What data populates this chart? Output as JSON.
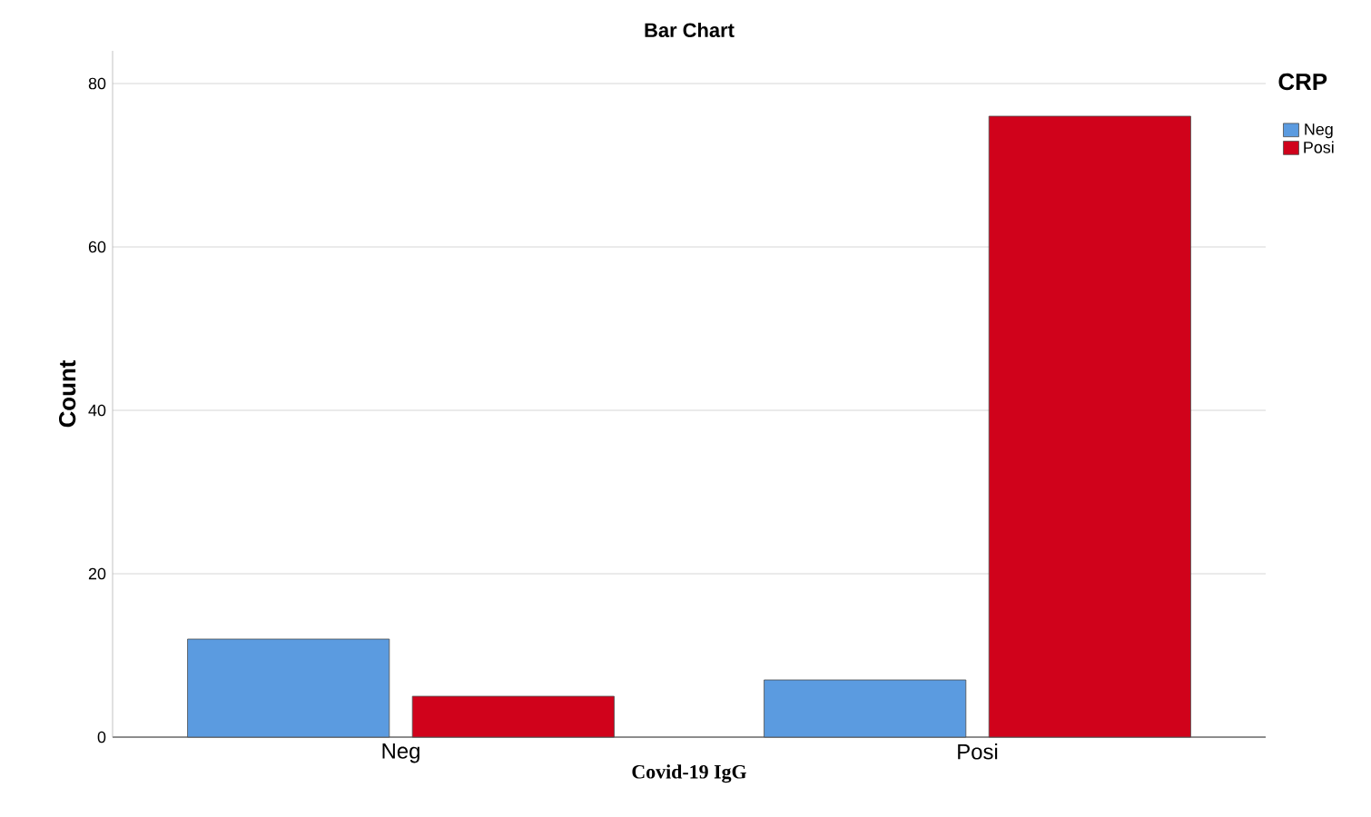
{
  "chart_data": {
    "type": "bar",
    "title": "Bar Chart",
    "xlabel": "Covid-19 IgG",
    "ylabel": "Count",
    "legend_title": "CRP",
    "categories": [
      "Neg",
      "Posi"
    ],
    "series": [
      {
        "name": "Neg",
        "color": "#5b9be0",
        "values": [
          12,
          7
        ]
      },
      {
        "name": "Posi",
        "color": "#d0021b",
        "values": [
          5,
          76
        ]
      }
    ],
    "ylim": [
      0,
      84
    ],
    "yticks": [
      0,
      20,
      40,
      60,
      80
    ],
    "grid": "y",
    "legend": "top right"
  }
}
